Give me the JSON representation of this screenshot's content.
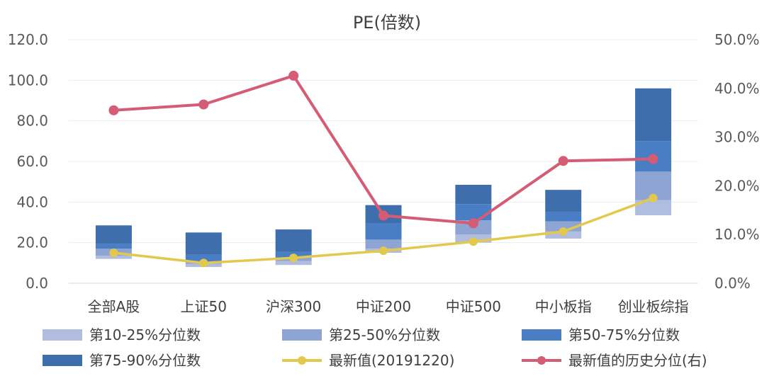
{
  "chart_data": {
    "type": "bar",
    "title": "PE(倍数)",
    "categories": [
      "全部A股",
      "上证50",
      "沪深300",
      "中证200",
      "中证500",
      "中小板指",
      "创业板综指"
    ],
    "ylim": [
      0,
      120
    ],
    "y_ticks": [
      "0.0",
      "20.0",
      "40.0",
      "60.0",
      "80.0",
      "100.0",
      "120.0"
    ],
    "y2lim": [
      0,
      50
    ],
    "y2_ticks": [
      "0.0%",
      "10.0%",
      "20.0%",
      "30.0%",
      "40.0%",
      "50.0%"
    ],
    "grid": true,
    "legend_position": "bottom",
    "bar_bottom": [
      12.0,
      8.0,
      9.0,
      15.0,
      20.0,
      22.0,
      33.5
    ],
    "series": [
      {
        "name": "第10-25%分位数",
        "kind": "stacked-bar",
        "color": "#b0bddf",
        "values": [
          1.5,
          1.5,
          2.0,
          2.0,
          4.0,
          3.5,
          7.5
        ]
      },
      {
        "name": "第25-50%分位数",
        "kind": "stacked-bar",
        "color": "#8ea4d2",
        "values": [
          3.5,
          1.0,
          1.5,
          4.5,
          7.0,
          5.0,
          14.0
        ]
      },
      {
        "name": "第50-75%分位数",
        "kind": "stacked-bar",
        "color": "#4a7ec4",
        "values": [
          2.5,
          3.5,
          3.0,
          8.0,
          8.0,
          4.5,
          15.0
        ]
      },
      {
        "name": "第75-90%分位数",
        "kind": "stacked-bar",
        "color": "#3f6ead",
        "values": [
          9.0,
          11.0,
          11.0,
          9.0,
          9.5,
          11.0,
          26.0
        ]
      },
      {
        "name": "最新值(20191220)",
        "kind": "line",
        "axis": "left",
        "color": "#e2c94e",
        "values": [
          15.0,
          10.0,
          12.5,
          16.0,
          20.5,
          25.5,
          42.0
        ]
      },
      {
        "name": "最新值的历史分位(右)",
        "kind": "line",
        "axis": "right",
        "color": "#d45c74",
        "values": [
          35.5,
          36.7,
          42.6,
          13.9,
          12.3,
          25.1,
          25.5
        ]
      }
    ]
  }
}
